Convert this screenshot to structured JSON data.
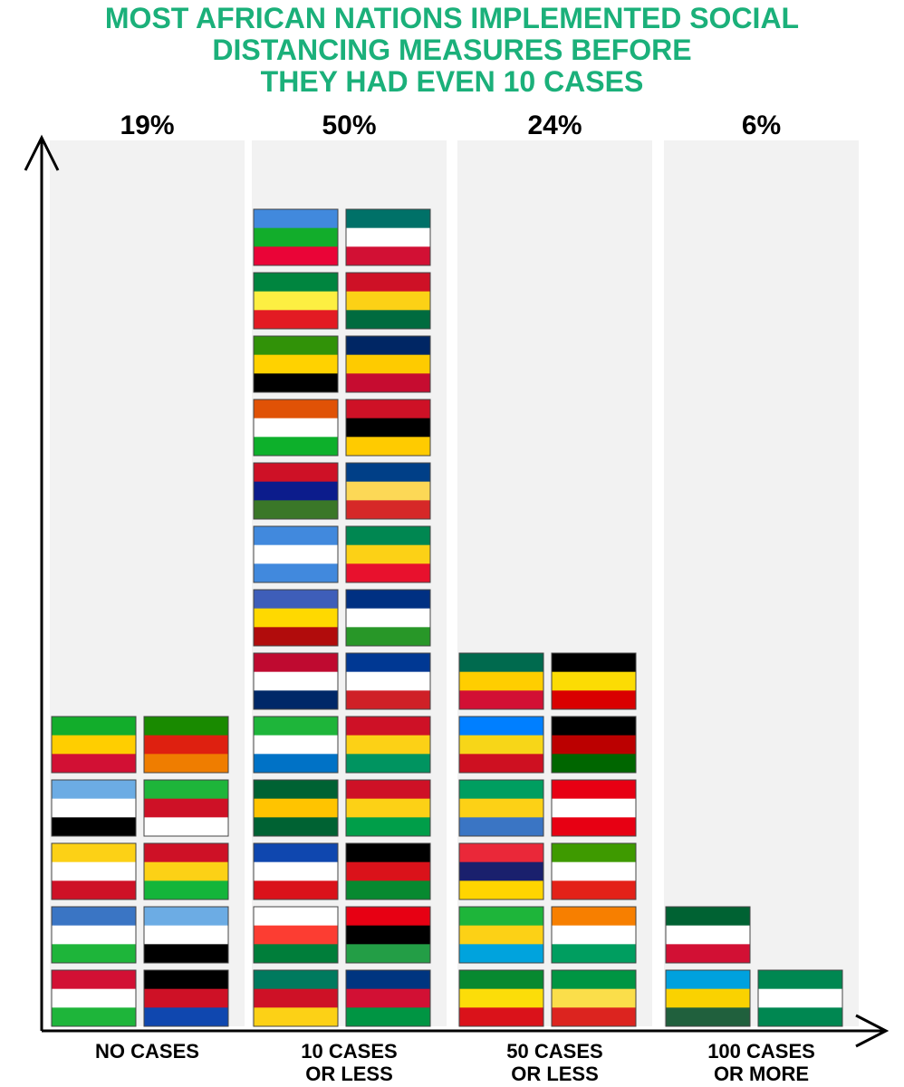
{
  "chart_data": {
    "type": "bar",
    "title_lines": [
      "MOST AFRICAN NATIONS IMPLEMENTED SOCIAL",
      "DISTANCING MEASURES BEFORE",
      "THEY HAD EVEN 10 CASES"
    ],
    "title_color": "#1bb07a",
    "categories": [
      {
        "label_lines": [
          "NO CASES"
        ],
        "percent_label": "19%",
        "percent": 19,
        "count": 10
      },
      {
        "label_lines": [
          "10 CASES",
          "OR LESS"
        ],
        "percent_label": "50%",
        "percent": 50,
        "count": 26
      },
      {
        "label_lines": [
          "50 CASES",
          "OR LESS"
        ],
        "percent_label": "24%",
        "percent": 24,
        "count": 12
      },
      {
        "label_lines": [
          "100 CASES",
          "OR MORE"
        ],
        "percent_label": "6%",
        "percent": 6,
        "count": 3
      }
    ],
    "column_background": "#f2f2f2",
    "flag_colors": [
      [
        "#d21034",
        "#ffffff",
        "#1eb53a"
      ],
      [
        "#000000",
        "#ce1126",
        "#0f47af"
      ],
      [
        "#3a75c4",
        "#ffffff",
        "#1eb53a"
      ],
      [
        "#6cace4",
        "#ffffff",
        "#000000"
      ],
      [
        "#fcd116",
        "#ffffff",
        "#ce1126"
      ],
      [
        "#ce1126",
        "#fcd116",
        "#14b53a"
      ],
      [
        "#6cace4",
        "#ffffff",
        "#000000"
      ],
      [
        "#1eb53a",
        "#ce1126",
        "#ffffff"
      ],
      [
        "#12ad2b",
        "#ffce00",
        "#d21034"
      ],
      [
        "#198a00",
        "#de2010",
        "#ef7d00"
      ],
      [
        "#007a5e",
        "#ce1126",
        "#fcd116"
      ],
      [
        "#003580",
        "#d21034",
        "#009543"
      ],
      [
        "#ffffff",
        "#fc3d32",
        "#007e3a"
      ],
      [
        "#e70013",
        "#000000",
        "#239e46"
      ],
      [
        "#0f47af",
        "#ffffff",
        "#da121a"
      ],
      [
        "#000000",
        "#da121a",
        "#078930"
      ],
      [
        "#006233",
        "#ffc400",
        "#006233"
      ],
      [
        "#ce1126",
        "#fcd116",
        "#009e49"
      ],
      [
        "#1eb53a",
        "#ffffff",
        "#0072c6"
      ],
      [
        "#ce1126",
        "#fcd116",
        "#009460"
      ],
      [
        "#bf0a30",
        "#ffffff",
        "#002868"
      ],
      [
        "#003893",
        "#ffffff",
        "#cf2027"
      ],
      [
        "#3e5eb9",
        "#ffd900",
        "#b10c0c"
      ],
      [
        "#003082",
        "#ffffff",
        "#289728"
      ],
      [
        "#4189dd",
        "#ffffff",
        "#4189dd"
      ],
      [
        "#008751",
        "#fcd116",
        "#e8112d"
      ],
      [
        "#ce1126",
        "#0c1c8c",
        "#3a7728"
      ],
      [
        "#003f87",
        "#fcd856",
        "#d62828"
      ],
      [
        "#e05206",
        "#ffffff",
        "#0db02b"
      ],
      [
        "#ce1126",
        "#000000",
        "#ffcb00"
      ],
      [
        "#319208",
        "#ffd200",
        "#000000"
      ],
      [
        "#002664",
        "#fecb00",
        "#c60c30"
      ],
      [
        "#00853f",
        "#fdef42",
        "#e31b23"
      ],
      [
        "#ce1126",
        "#fcd116",
        "#006b3f"
      ],
      [
        "#4189dd",
        "#12ad2b",
        "#ea0437"
      ],
      [
        "#007168",
        "#ffffff",
        "#d21034"
      ],
      [
        "#078930",
        "#fcdd09",
        "#da121a"
      ],
      [
        "#009543",
        "#fbde4a",
        "#dc241f"
      ],
      [
        "#1eb53a",
        "#fcd116",
        "#00a3dd"
      ],
      [
        "#f77f00",
        "#ffffff",
        "#009e60"
      ],
      [
        "#ea2839",
        "#1a206d",
        "#ffd500"
      ],
      [
        "#3e9a00",
        "#ffffff",
        "#e32118"
      ],
      [
        "#009e60",
        "#fcd116",
        "#3a75c4"
      ],
      [
        "#e70013",
        "#ffffff",
        "#e70013"
      ],
      [
        "#007fff",
        "#f7d618",
        "#ce1021"
      ],
      [
        "#000000",
        "#bb0000",
        "#006600"
      ],
      [
        "#006a4e",
        "#ffce00",
        "#d21034"
      ],
      [
        "#000000",
        "#fcdc04",
        "#d90000"
      ],
      [
        "#00a1de",
        "#fad201",
        "#20603d"
      ],
      [
        "#008751",
        "#ffffff",
        "#008751"
      ],
      [
        "#006233",
        "#ffffff",
        "#d21034"
      ],
      [
        "#ce1126",
        "#ffffff",
        "#000000"
      ],
      [
        "#007a4d",
        "#ffb612",
        "#de3831"
      ]
    ]
  }
}
